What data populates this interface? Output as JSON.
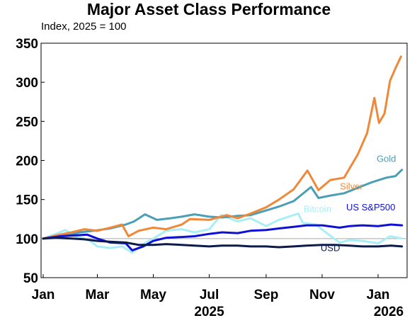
{
  "chart_data": {
    "type": "line",
    "title": "Major Asset Class Performance",
    "subtitle": "Index, 2025 = 100",
    "ylim": [
      50,
      350
    ],
    "yticks": [
      50,
      100,
      150,
      200,
      250,
      300,
      350
    ],
    "xlim": [
      "2025-01-01",
      "2026-01-28"
    ],
    "xticks": [
      {
        "date": "2025-01-01",
        "label": "Jan"
      },
      {
        "date": "2025-03-01",
        "label": "Mar"
      },
      {
        "date": "2025-05-01",
        "label": "May"
      },
      {
        "date": "2025-07-01",
        "label": "Jul"
      },
      {
        "date": "2025-09-01",
        "label": "Sep"
      },
      {
        "date": "2025-11-01",
        "label": "Nov"
      },
      {
        "date": "2026-01-01",
        "label": "Jan"
      }
    ],
    "year_labels": [
      {
        "date": "2025-07-01",
        "label": "2025"
      },
      {
        "date": "2026-01-15",
        "label": "2026"
      }
    ],
    "reference_line": 100,
    "grid": false,
    "series": [
      {
        "name": "Silver",
        "color": "#f0883a",
        "label_at": {
          "date": "2025-12-03",
          "value": 163
        },
        "points": [
          [
            "2025-01-01",
            100
          ],
          [
            "2025-01-15",
            104
          ],
          [
            "2025-02-01",
            108
          ],
          [
            "2025-02-15",
            112
          ],
          [
            "2025-03-01",
            110
          ],
          [
            "2025-03-15",
            114
          ],
          [
            "2025-03-28",
            118
          ],
          [
            "2025-04-04",
            103
          ],
          [
            "2025-04-15",
            110
          ],
          [
            "2025-05-01",
            114
          ],
          [
            "2025-05-15",
            112
          ],
          [
            "2025-06-01",
            118
          ],
          [
            "2025-06-10",
            125
          ],
          [
            "2025-07-01",
            124
          ],
          [
            "2025-07-20",
            130
          ],
          [
            "2025-08-01",
            126
          ],
          [
            "2025-08-15",
            132
          ],
          [
            "2025-09-01",
            140
          ],
          [
            "2025-09-15",
            150
          ],
          [
            "2025-10-01",
            163
          ],
          [
            "2025-10-16",
            187
          ],
          [
            "2025-10-28",
            162
          ],
          [
            "2025-11-10",
            175
          ],
          [
            "2025-11-25",
            178
          ],
          [
            "2025-12-10",
            208
          ],
          [
            "2025-12-20",
            235
          ],
          [
            "2025-12-28",
            280
          ],
          [
            "2026-01-02",
            248
          ],
          [
            "2026-01-08",
            260
          ],
          [
            "2026-01-14",
            302
          ],
          [
            "2026-01-20",
            318
          ],
          [
            "2026-01-26",
            333
          ]
        ]
      },
      {
        "name": "Gold",
        "color": "#4a9fb5",
        "label_at": {
          "date": "2026-01-10",
          "value": 198
        },
        "points": [
          [
            "2025-01-01",
            100
          ],
          [
            "2025-01-20",
            103
          ],
          [
            "2025-02-10",
            108
          ],
          [
            "2025-02-25",
            110
          ],
          [
            "2025-03-15",
            113
          ],
          [
            "2025-04-01",
            118
          ],
          [
            "2025-04-10",
            122
          ],
          [
            "2025-04-22",
            131
          ],
          [
            "2025-05-05",
            124
          ],
          [
            "2025-05-20",
            126
          ],
          [
            "2025-06-01",
            128
          ],
          [
            "2025-06-15",
            131
          ],
          [
            "2025-07-01",
            128
          ],
          [
            "2025-07-15",
            127
          ],
          [
            "2025-08-01",
            129
          ],
          [
            "2025-08-15",
            130
          ],
          [
            "2025-09-01",
            136
          ],
          [
            "2025-09-15",
            141
          ],
          [
            "2025-10-01",
            148
          ],
          [
            "2025-10-20",
            166
          ],
          [
            "2025-10-28",
            152
          ],
          [
            "2025-11-10",
            155
          ],
          [
            "2025-11-25",
            158
          ],
          [
            "2025-12-10",
            165
          ],
          [
            "2025-12-25",
            172
          ],
          [
            "2026-01-10",
            178
          ],
          [
            "2026-01-20",
            180
          ],
          [
            "2026-01-27",
            188
          ]
        ]
      },
      {
        "name": "Bitcoin",
        "color": "#a8eef5",
        "label_at": {
          "date": "2025-10-27",
          "value": 134
        },
        "points": [
          [
            "2025-01-01",
            100
          ],
          [
            "2025-01-15",
            106
          ],
          [
            "2025-01-25",
            111
          ],
          [
            "2025-02-05",
            103
          ],
          [
            "2025-02-20",
            98
          ],
          [
            "2025-03-01",
            90
          ],
          [
            "2025-03-15",
            88
          ],
          [
            "2025-03-28",
            90
          ],
          [
            "2025-04-08",
            82
          ],
          [
            "2025-04-20",
            93
          ],
          [
            "2025-05-01",
            100
          ],
          [
            "2025-05-15",
            110
          ],
          [
            "2025-06-01",
            112
          ],
          [
            "2025-06-15",
            108
          ],
          [
            "2025-07-01",
            112
          ],
          [
            "2025-07-14",
            130
          ],
          [
            "2025-08-01",
            122
          ],
          [
            "2025-08-15",
            126
          ],
          [
            "2025-09-01",
            116
          ],
          [
            "2025-09-15",
            124
          ],
          [
            "2025-10-06",
            132
          ],
          [
            "2025-10-11",
            120
          ],
          [
            "2025-10-25",
            118
          ],
          [
            "2025-11-05",
            108
          ],
          [
            "2025-11-20",
            95
          ],
          [
            "2025-12-01",
            98
          ],
          [
            "2025-12-15",
            97
          ],
          [
            "2026-01-01",
            94
          ],
          [
            "2026-01-14",
            103
          ],
          [
            "2026-01-27",
            100
          ]
        ]
      },
      {
        "name": "US S&P500",
        "color": "#0f10d6",
        "label_at": {
          "date": "2025-12-24",
          "value": 136
        },
        "points": [
          [
            "2025-01-01",
            100
          ],
          [
            "2025-01-20",
            103
          ],
          [
            "2025-02-18",
            105
          ],
          [
            "2025-03-01",
            100
          ],
          [
            "2025-03-15",
            95
          ],
          [
            "2025-04-01",
            94
          ],
          [
            "2025-04-08",
            85
          ],
          [
            "2025-04-20",
            90
          ],
          [
            "2025-05-01",
            97
          ],
          [
            "2025-05-15",
            101
          ],
          [
            "2025-06-01",
            102
          ],
          [
            "2025-06-15",
            103
          ],
          [
            "2025-07-01",
            106
          ],
          [
            "2025-07-15",
            108
          ],
          [
            "2025-08-01",
            107
          ],
          [
            "2025-08-15",
            110
          ],
          [
            "2025-09-01",
            111
          ],
          [
            "2025-09-15",
            113
          ],
          [
            "2025-10-01",
            115
          ],
          [
            "2025-10-15",
            117
          ],
          [
            "2025-11-01",
            117
          ],
          [
            "2025-11-20",
            114
          ],
          [
            "2025-12-01",
            116
          ],
          [
            "2025-12-15",
            117
          ],
          [
            "2026-01-01",
            116
          ],
          [
            "2026-01-15",
            118
          ],
          [
            "2026-01-27",
            117
          ]
        ]
      },
      {
        "name": "USD",
        "color": "#0d1b48",
        "label_at": {
          "date": "2025-11-10",
          "value": 84
        },
        "points": [
          [
            "2025-01-01",
            100
          ],
          [
            "2025-01-15",
            101
          ],
          [
            "2025-02-01",
            100
          ],
          [
            "2025-02-15",
            99
          ],
          [
            "2025-03-01",
            97
          ],
          [
            "2025-03-15",
            96
          ],
          [
            "2025-04-01",
            95
          ],
          [
            "2025-04-15",
            92
          ],
          [
            "2025-05-01",
            92
          ],
          [
            "2025-05-15",
            93
          ],
          [
            "2025-06-01",
            92
          ],
          [
            "2025-06-15",
            91
          ],
          [
            "2025-07-01",
            90
          ],
          [
            "2025-07-15",
            91
          ],
          [
            "2025-08-01",
            91
          ],
          [
            "2025-08-15",
            90
          ],
          [
            "2025-09-01",
            90
          ],
          [
            "2025-09-15",
            89
          ],
          [
            "2025-10-01",
            90
          ],
          [
            "2025-10-15",
            91
          ],
          [
            "2025-11-01",
            92
          ],
          [
            "2025-11-15",
            92
          ],
          [
            "2025-12-01",
            91
          ],
          [
            "2025-12-15",
            90
          ],
          [
            "2026-01-01",
            90
          ],
          [
            "2026-01-15",
            91
          ],
          [
            "2026-01-27",
            90
          ]
        ]
      }
    ]
  }
}
